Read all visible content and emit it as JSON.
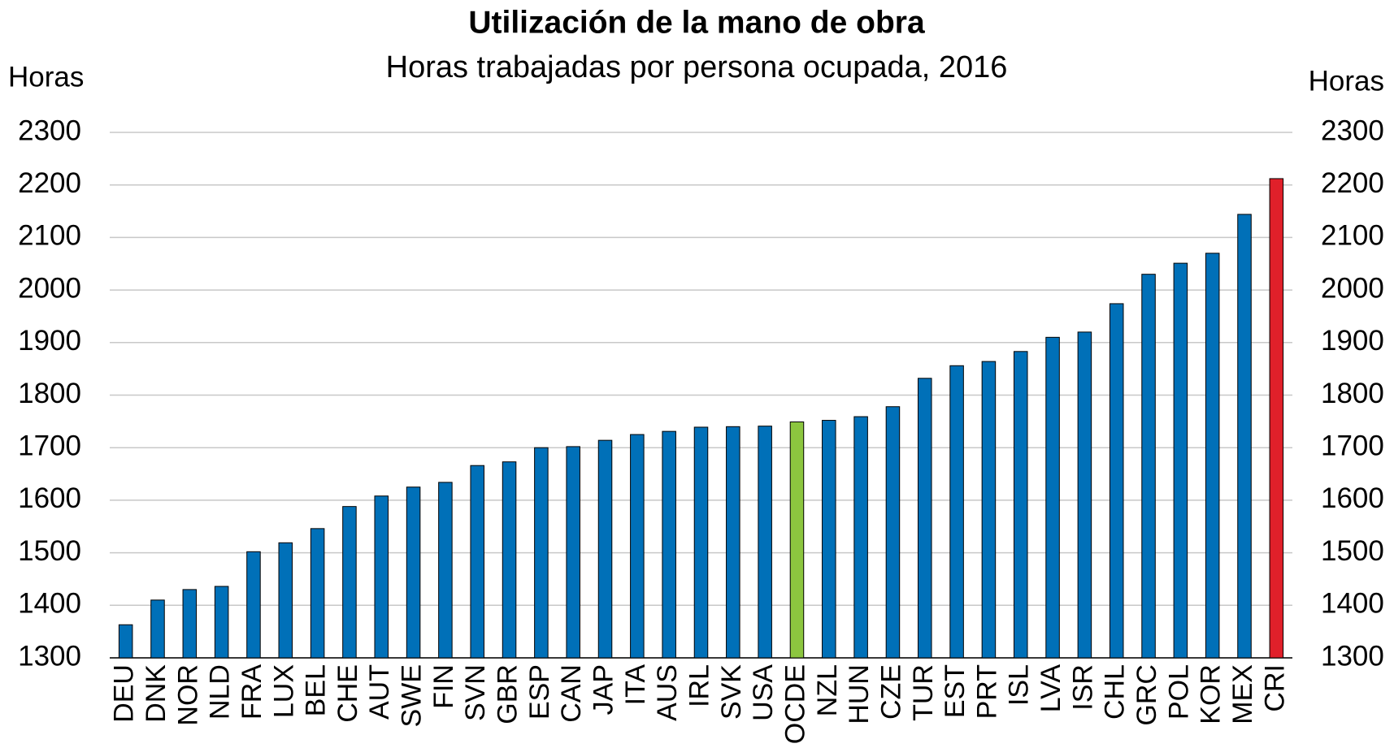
{
  "chart_data": {
    "type": "bar",
    "title": "Utilización de la mano de obra",
    "subtitle": "Horas trabajadas por persona ocupada, 2016",
    "y_label": "Horas",
    "y2_label": "Horas",
    "categories": [
      "DEU",
      "DNK",
      "NOR",
      "NLD",
      "FRA",
      "LUX",
      "BEL",
      "CHE",
      "AUT",
      "SWE",
      "FIN",
      "SVN",
      "GBR",
      "ESP",
      "CAN",
      "JAP",
      "ITA",
      "AUS",
      "IRL",
      "SVK",
      "USA",
      "OCDE",
      "NZL",
      "HUN",
      "CZE",
      "TUR",
      "EST",
      "PRT",
      "ISL",
      "LVA",
      "ISR",
      "CHL",
      "GRC",
      "POL",
      "KOR",
      "MEX",
      "CRI"
    ],
    "values": [
      1363,
      1410,
      1430,
      1436,
      1502,
      1519,
      1546,
      1588,
      1608,
      1625,
      1634,
      1666,
      1673,
      1700,
      1702,
      1714,
      1725,
      1731,
      1739,
      1740,
      1741,
      1749,
      1752,
      1759,
      1778,
      1832,
      1856,
      1864,
      1883,
      1910,
      1920,
      1974,
      2030,
      2051,
      2070,
      2144,
      2212
    ],
    "colors": [
      "#0070b8",
      "#0070b8",
      "#0070b8",
      "#0070b8",
      "#0070b8",
      "#0070b8",
      "#0070b8",
      "#0070b8",
      "#0070b8",
      "#0070b8",
      "#0070b8",
      "#0070b8",
      "#0070b8",
      "#0070b8",
      "#0070b8",
      "#0070b8",
      "#0070b8",
      "#0070b8",
      "#0070b8",
      "#0070b8",
      "#0070b8",
      "#8cc63f",
      "#0070b8",
      "#0070b8",
      "#0070b8",
      "#0070b8",
      "#0070b8",
      "#0070b8",
      "#0070b8",
      "#0070b8",
      "#0070b8",
      "#0070b8",
      "#0070b8",
      "#0070b8",
      "#0070b8",
      "#0070b8",
      "#e0202a"
    ],
    "ylim": [
      1300,
      2300
    ],
    "yticks": [
      1300,
      1400,
      1500,
      1600,
      1700,
      1800,
      1900,
      2000,
      2100,
      2200,
      2300
    ],
    "y2lim": [
      1300,
      2300
    ],
    "y2ticks": [
      1300,
      1400,
      1500,
      1600,
      1700,
      1800,
      1900,
      2000,
      2100,
      2200,
      2300
    ],
    "grid": true
  }
}
